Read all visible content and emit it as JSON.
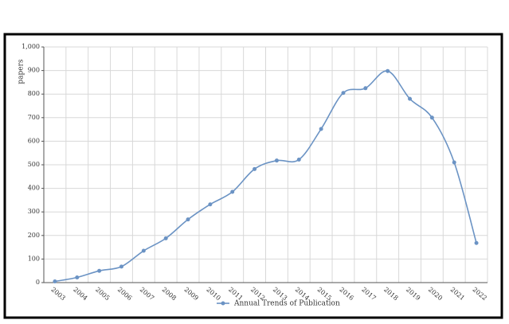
{
  "chart_data": {
    "type": "line",
    "y_label": "papers",
    "categories": [
      "2003",
      "2004",
      "2005",
      "2006",
      "2007",
      "2008",
      "2009",
      "2010",
      "2011",
      "2012",
      "2013",
      "2014",
      "2015",
      "2016",
      "2017",
      "2018",
      "2019",
      "2020",
      "2021",
      "2022"
    ],
    "series": [
      {
        "name": "Annual Trends of Publication",
        "color": "#6b93c4",
        "values": [
          5,
          22,
          50,
          68,
          135,
          188,
          268,
          332,
          385,
          482,
          518,
          522,
          652,
          805,
          825,
          898,
          780,
          700,
          510,
          168
        ]
      }
    ],
    "ylim": [
      0,
      1000
    ],
    "yticks": [
      0,
      100,
      200,
      300,
      400,
      500,
      600,
      700,
      800,
      900,
      {
        "value": 1000,
        "label": "1,000"
      }
    ],
    "grid": true
  }
}
